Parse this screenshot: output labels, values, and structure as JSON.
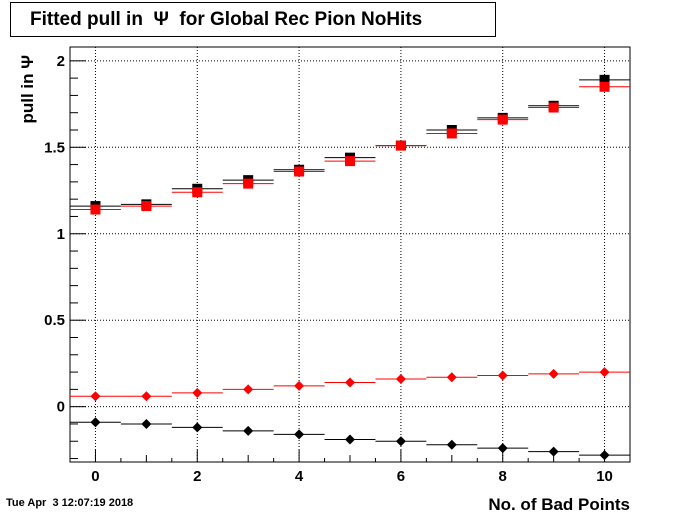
{
  "title": "Fitted pull in  Ψ  for Global Rec Pion NoHits",
  "timestamp": "Tue Apr  3 12:07:19 2018",
  "chart_data": {
    "type": "scatter",
    "xlabel": "No. of Bad Points",
    "ylabel": "pull in  Ψ",
    "xlim": [
      -0.5,
      10.5
    ],
    "ylim": [
      -0.32,
      2.08
    ],
    "xticks": [
      0,
      2,
      4,
      6,
      8,
      10
    ],
    "xtick_labels": [
      "0",
      "2",
      "4",
      "6",
      "8",
      "10"
    ],
    "yticks": [
      0,
      0.5,
      1,
      1.5,
      2
    ],
    "ytick_labels": [
      "0",
      "0.5",
      "1",
      "1.5",
      "2"
    ],
    "grid": true,
    "x": [
      0,
      1,
      2,
      3,
      4,
      5,
      6,
      7,
      8,
      9,
      10
    ],
    "series": [
      {
        "color": "#000000",
        "marker": "square",
        "values": [
          1.16,
          1.17,
          1.26,
          1.31,
          1.37,
          1.44,
          1.51,
          1.6,
          1.67,
          1.74,
          1.89
        ]
      },
      {
        "color": "#ff0000",
        "marker": "square",
        "values": [
          1.14,
          1.16,
          1.24,
          1.29,
          1.36,
          1.42,
          1.51,
          1.58,
          1.66,
          1.73,
          1.85
        ]
      },
      {
        "color": "#ff0000",
        "marker": "diamond",
        "values": [
          0.06,
          0.06,
          0.08,
          0.1,
          0.12,
          0.14,
          0.16,
          0.17,
          0.18,
          0.19,
          0.2
        ]
      },
      {
        "color": "#000000",
        "marker": "diamond",
        "values": [
          -0.09,
          -0.1,
          -0.12,
          -0.14,
          -0.16,
          -0.19,
          -0.2,
          -0.22,
          -0.24,
          -0.26,
          -0.28
        ]
      }
    ]
  }
}
